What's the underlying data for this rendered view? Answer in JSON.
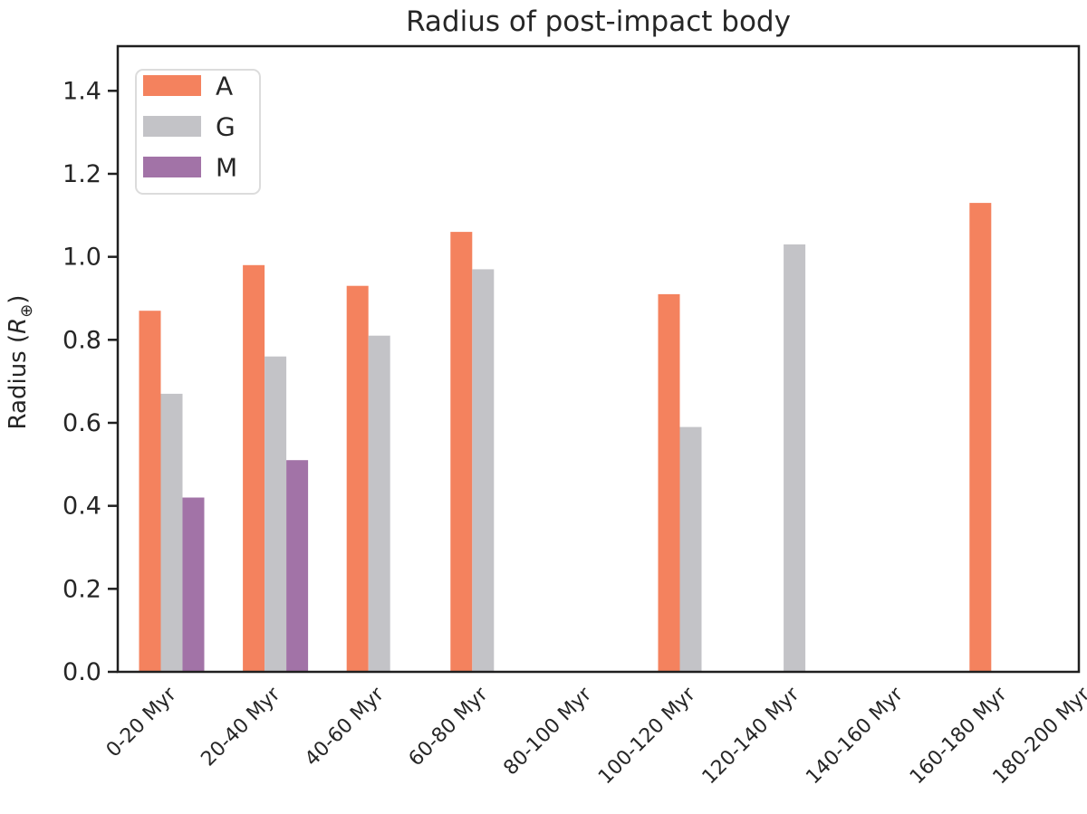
{
  "figure": {
    "background": "#ffffff",
    "frame_color": "#1f1f1f",
    "text_color": "#262626",
    "legend_border_color": "#dcdcdc"
  },
  "chart_data": {
    "type": "bar",
    "title": "Radius of post-impact body",
    "xlabel": "",
    "ylabel": "Radius (R⊕)",
    "ylabel_parts": {
      "prefix": "Radius (",
      "symbol": "R",
      "subscript": "⊕",
      "suffix": ")"
    },
    "categories": [
      "0-20 Myr",
      "20-40 Myr",
      "40-60 Myr",
      "60-80 Myr",
      "80-100 Myr",
      "100-120 Myr",
      "120-140 Myr",
      "140-160 Myr",
      "160-180 Myr",
      "180-200 Myr"
    ],
    "series": [
      {
        "name": "A",
        "color": "#F4825E",
        "values": [
          0.87,
          0.98,
          0.93,
          1.06,
          null,
          0.91,
          null,
          null,
          1.13,
          null
        ]
      },
      {
        "name": "G",
        "color": "#C3C3C7",
        "values": [
          0.67,
          0.76,
          0.81,
          0.97,
          null,
          0.59,
          1.03,
          null,
          null,
          null
        ]
      },
      {
        "name": "M",
        "color": "#A273A7",
        "values": [
          0.42,
          0.51,
          null,
          null,
          null,
          null,
          null,
          null,
          null,
          null
        ]
      }
    ],
    "yticks": [
      "0.0",
      "0.2",
      "0.4",
      "0.6",
      "0.8",
      "1.0",
      "1.2",
      "1.4"
    ],
    "ylim": [
      0,
      1.5
    ],
    "grid": false,
    "legend_position": "upper left"
  }
}
